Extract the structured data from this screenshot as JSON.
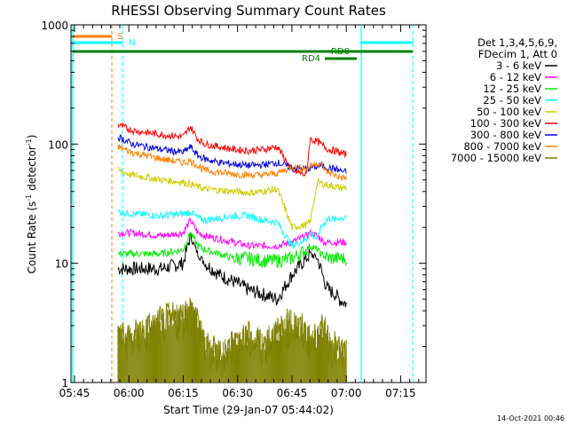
{
  "chart_data": {
    "type": "line",
    "title": "RHESSI Observing Summary Count Rates",
    "xlabel": "Start Time (29-Jan-07 05:44:02)",
    "ylabel_prefix": "Count Rate (s",
    "ylabel_sup": "-1",
    "ylabel_mid": " detector",
    "ylabel_sup2": "-1",
    "ylabel_suffix": ")",
    "y_scale": "log",
    "ylim": [
      1,
      1000
    ],
    "xlim": [
      "05:44:02",
      "07:22:00"
    ],
    "x_ticks": [
      "05:45",
      "06:00",
      "06:15",
      "06:30",
      "06:45",
      "07:00",
      "07:15"
    ],
    "y_ticks": [
      "1",
      "10",
      "100",
      "1000"
    ],
    "legend": {
      "header": [
        "Det 1,3,4,5,6,9,",
        "FDecim 1, Att 0"
      ],
      "entries": [
        {
          "label": "3 - 6 keV",
          "color": "#000000"
        },
        {
          "label": "6 - 12 keV",
          "color": "#ff00ff"
        },
        {
          "label": "12 - 25 keV",
          "color": "#00ee00"
        },
        {
          "label": "25 - 50 keV",
          "color": "#00ffff"
        },
        {
          "label": "50 - 100 keV",
          "color": "#cccc00"
        },
        {
          "label": "100 - 300 keV",
          "color": "#ff0000"
        },
        {
          "label": "300 - 800 keV",
          "color": "#0000dd"
        },
        {
          "label": "800 - 7000 keV",
          "color": "#ff8000"
        },
        {
          "label": "7000 - 15000 keV",
          "color": "#808000"
        }
      ]
    },
    "series": [
      {
        "name": "3 - 6 keV",
        "color": "#000000",
        "x": [
          0,
          4,
          12,
          18,
          20,
          22,
          24,
          28,
          32,
          36,
          40,
          44,
          48,
          52,
          53,
          55,
          56,
          57,
          58,
          60,
          61,
          62,
          63
        ],
        "y": [
          9,
          9,
          9,
          10,
          17,
          12,
          10,
          8,
          7,
          6,
          5.5,
          5,
          8,
          11,
          12,
          11,
          9,
          7,
          6,
          5.5,
          5,
          4.8,
          4.6
        ]
      },
      {
        "name": "6 - 12 keV",
        "color": "#ff00ff",
        "x": [
          0,
          4,
          12,
          18,
          20,
          22,
          24,
          28,
          32,
          36,
          40,
          44,
          48,
          52,
          53,
          55,
          56,
          57,
          58,
          60,
          61,
          62,
          63
        ],
        "y": [
          18,
          18,
          17,
          18,
          23,
          18,
          17,
          16,
          15,
          14,
          14,
          14,
          15,
          17,
          18,
          17,
          16,
          15,
          15,
          15,
          15,
          15,
          15
        ]
      },
      {
        "name": "12 - 25 keV",
        "color": "#00ee00",
        "x": [
          0,
          4,
          12,
          18,
          20,
          22,
          24,
          28,
          32,
          36,
          40,
          44,
          48,
          52,
          53,
          55,
          56,
          57,
          58,
          60,
          61,
          62,
          63
        ],
        "y": [
          12,
          12,
          12,
          13,
          18,
          14,
          13,
          12,
          11,
          11,
          10.5,
          10.5,
          11,
          13,
          14,
          13,
          12,
          11.5,
          11,
          11,
          11,
          11,
          11
        ]
      },
      {
        "name": "25 - 50 keV",
        "color": "#00ffff",
        "x": [
          0,
          4,
          12,
          18,
          20,
          22,
          24,
          28,
          32,
          36,
          40,
          44,
          48,
          52,
          53,
          55,
          56,
          57,
          58,
          60,
          61,
          62,
          63
        ],
        "y": [
          27,
          26,
          25,
          26,
          27,
          24,
          23,
          24,
          25,
          25,
          23,
          22,
          14,
          16,
          18,
          16,
          20,
          22,
          24,
          23,
          24,
          24,
          25
        ]
      },
      {
        "name": "50 - 100 keV",
        "color": "#cccc00",
        "x": [
          0,
          4,
          12,
          18,
          20,
          22,
          24,
          28,
          32,
          36,
          40,
          44,
          48,
          52,
          53,
          55,
          56,
          57,
          58,
          60,
          61,
          62,
          63
        ],
        "y": [
          60,
          55,
          50,
          48,
          46,
          44,
          42,
          41,
          40,
          39,
          40,
          42,
          20,
          21,
          22,
          48,
          47,
          46,
          45,
          44,
          43,
          43,
          43
        ]
      },
      {
        "name": "100 - 300 keV",
        "color": "#ff0000",
        "x": [
          0,
          4,
          12,
          18,
          20,
          22,
          24,
          28,
          32,
          36,
          40,
          44,
          48,
          52,
          53,
          55,
          56,
          57,
          58,
          60,
          61,
          62,
          63
        ],
        "y": [
          145,
          130,
          120,
          115,
          140,
          110,
          100,
          95,
          90,
          88,
          90,
          95,
          60,
          55,
          110,
          105,
          100,
          95,
          90,
          88,
          85,
          83,
          82
        ]
      },
      {
        "name": "300 - 800 keV",
        "color": "#0000dd",
        "x": [
          0,
          4,
          12,
          18,
          20,
          22,
          24,
          28,
          32,
          36,
          40,
          44,
          48,
          52,
          53,
          55,
          56,
          57,
          58,
          60,
          61,
          62,
          63
        ],
        "y": [
          115,
          100,
          90,
          85,
          95,
          80,
          75,
          70,
          68,
          66,
          67,
          70,
          63,
          62,
          63,
          65,
          66,
          65,
          63,
          62,
          60,
          59,
          58
        ]
      },
      {
        "name": "800 - 7000 keV",
        "color": "#ff8000",
        "x": [
          0,
          4,
          12,
          18,
          20,
          22,
          24,
          28,
          32,
          36,
          40,
          44,
          48,
          52,
          53,
          55,
          56,
          57,
          58,
          60,
          61,
          62,
          63
        ],
        "y": [
          95,
          85,
          75,
          70,
          72,
          66,
          60,
          58,
          56,
          55,
          55,
          57,
          64,
          62,
          65,
          70,
          67,
          62,
          58,
          55,
          53,
          52,
          52
        ]
      },
      {
        "name": "7000 - 15000 keV",
        "color": "#808000",
        "x": [
          0,
          4,
          12,
          18,
          20,
          22,
          24,
          28,
          32,
          36,
          40,
          44,
          48,
          52,
          53,
          55,
          56,
          57,
          58,
          60,
          61,
          62,
          63
        ],
        "y": [
          2.2,
          2.2,
          3,
          3.4,
          3.8,
          3.2,
          1.8,
          1.6,
          2.0,
          2.2,
          2.0,
          2.4,
          3.0,
          2.4,
          2.0,
          2.2,
          2.4,
          2.6,
          2.2,
          1.8,
          1.7,
          1.7,
          1.7
        ]
      }
    ],
    "series_x_origin": "05:57:00",
    "annotations": [
      {
        "text": "S",
        "color": "#ff8000"
      },
      {
        "text": "N",
        "color": "#00ffff"
      },
      {
        "text": "RD0",
        "color": "#008000"
      },
      {
        "text": "RD4",
        "color": "#008000"
      }
    ],
    "timestamp": "14-Oct-2021 00:46"
  }
}
